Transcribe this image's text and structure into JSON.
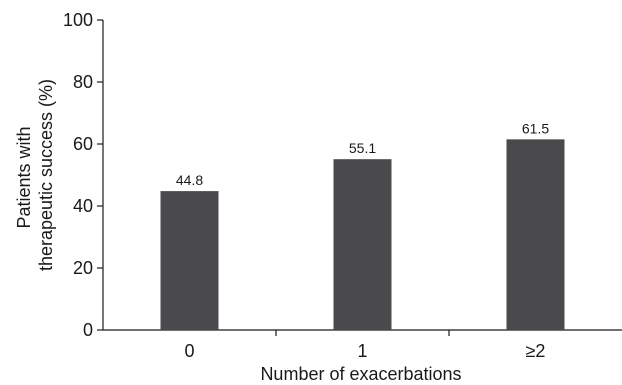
{
  "chart_data": {
    "type": "bar",
    "categories": [
      "0",
      "1",
      "≥2"
    ],
    "values": [
      44.8,
      55.1,
      61.5
    ],
    "data_labels": [
      "44.8",
      "55.1",
      "61.5"
    ],
    "xlabel": "Number of exacerbations",
    "ylabel_lines": [
      "Patients with",
      "therapeutic success (%)"
    ],
    "ylim": [
      0,
      100
    ],
    "yticks": [
      0,
      20,
      40,
      60,
      80,
      100
    ],
    "bar_color": "#4a4a4c",
    "axis_color": "#1a1a1a",
    "grid": false,
    "legend": "none"
  }
}
